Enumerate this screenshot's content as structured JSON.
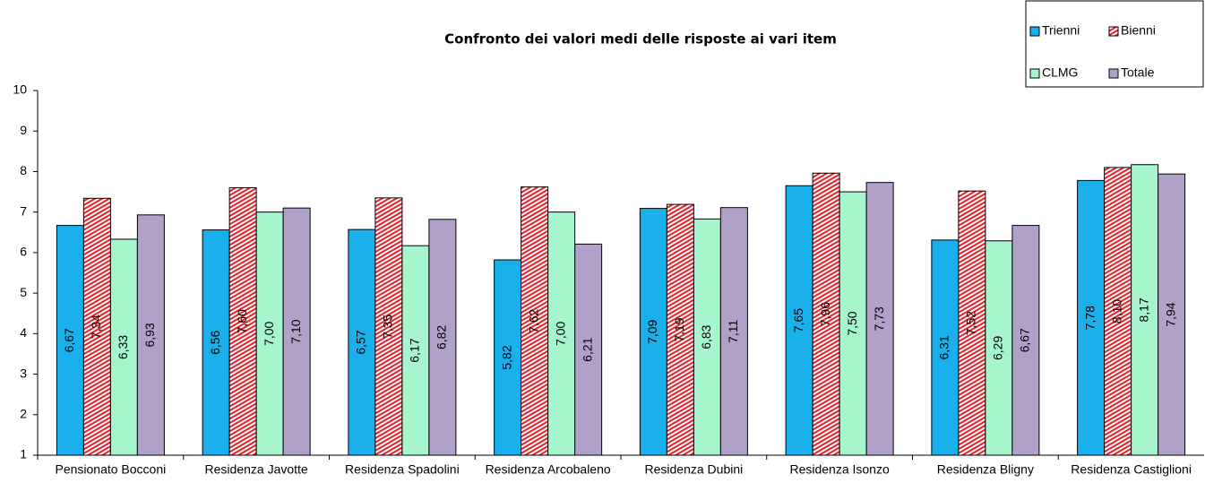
{
  "chart_data": {
    "type": "bar",
    "title": "Confronto dei valori medi delle risposte ai vari item",
    "categories": [
      "Pensionato Bocconi",
      "Residenza Javotte",
      "Residenza Spadolini",
      "Residenza Arcobaleno",
      "Residenza Dubini",
      "Residenza Isonzo",
      "Residenza Bligny",
      "Residenza Castiglioni"
    ],
    "series": [
      {
        "name": "Trienni",
        "color": "#1ab0ec",
        "values": [
          6.67,
          6.56,
          6.57,
          5.82,
          7.09,
          7.65,
          6.31,
          7.78
        ],
        "value_labels": [
          "6,67",
          "6,56",
          "6,57",
          "5,82",
          "7,09",
          "7,65",
          "6,31",
          "7,78"
        ]
      },
      {
        "name": "Bienni",
        "color": "#e8202a",
        "pattern": "hatch",
        "values": [
          7.34,
          7.6,
          7.35,
          7.62,
          7.19,
          7.96,
          7.52,
          8.1
        ],
        "value_labels": [
          "7,34",
          "7,60",
          "7,35",
          "7,62",
          "7,19",
          "7,96",
          "7,52",
          "8,10"
        ]
      },
      {
        "name": "CLMG",
        "color": "#a6f5cc",
        "values": [
          6.33,
          7.0,
          6.17,
          7.0,
          6.83,
          7.5,
          6.29,
          8.17
        ],
        "value_labels": [
          "6,33",
          "7,00",
          "6,17",
          "7,00",
          "6,83",
          "7,50",
          "6,29",
          "8,17"
        ]
      },
      {
        "name": "Totale",
        "color": "#b1a1c9",
        "values": [
          6.93,
          7.1,
          6.82,
          6.21,
          7.11,
          7.73,
          6.67,
          7.94
        ],
        "value_labels": [
          "6,93",
          "7,10",
          "6,82",
          "6,21",
          "7,11",
          "7,73",
          "6,67",
          "7,94"
        ]
      }
    ],
    "ylim": [
      1,
      10
    ],
    "yticks": [
      1,
      2,
      3,
      4,
      5,
      6,
      7,
      8,
      9,
      10
    ],
    "grid": false,
    "legend": "top-right"
  }
}
